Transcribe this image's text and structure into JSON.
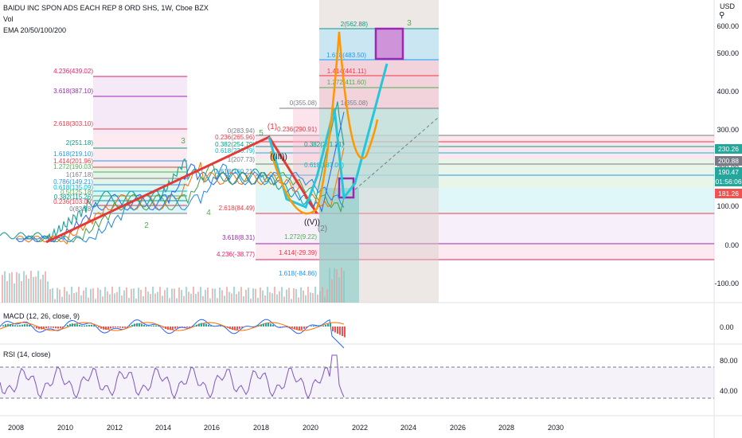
{
  "header": {
    "symbol": "BAIDU INC SPON ADS EACH REP 8 ORD SHS, 1W, Cboe BZX",
    "vol": "Vol",
    "ema": "EMA 20/50/100/200",
    "currency": "USD"
  },
  "main_axis": [
    "600.00",
    "500.00",
    "400.00",
    "300.00",
    "200.00",
    "100.00",
    "0.00",
    "-100.00"
  ],
  "price_badges": [
    {
      "text": "230.26",
      "color": "#26a69a"
    },
    {
      "text": "200.88",
      "color": "#787b86"
    },
    {
      "text": "190.47",
      "color": "#26a69a"
    },
    {
      "text": "01:56:06",
      "color": "#26a69a"
    },
    {
      "text": "181.26",
      "color": "#ef5350"
    }
  ],
  "x_axis": [
    "2008",
    "2010",
    "2012",
    "2014",
    "2016",
    "2018",
    "2020",
    "2022",
    "2024",
    "2026",
    "2028",
    "2030"
  ],
  "macd": {
    "label": "MACD (12, 26, close, 9)",
    "axis": [
      "0.00"
    ]
  },
  "rsi": {
    "label": "RSI (14, close)",
    "axis": [
      "80.00",
      "40.00"
    ]
  },
  "fib_left": [
    {
      "text": "4.236(439.02)",
      "color": "#e91e63"
    },
    {
      "text": "3.618(387.10)",
      "color": "#9c27b0"
    },
    {
      "text": "2.618(303.10)",
      "color": "#f23645"
    },
    {
      "text": "2(251.18)",
      "color": "#089981"
    },
    {
      "text": "1.618(219.10)",
      "color": "#2196f3"
    },
    {
      "text": "1.414(201.96)",
      "color": "#f23645"
    },
    {
      "text": "1.272(190.03)",
      "color": "#4caf50"
    },
    {
      "text": "1(167.18)",
      "color": "#787b86"
    },
    {
      "text": "0.786(149.21)",
      "color": "#2196f3"
    },
    {
      "text": "0.618(135.09)",
      "color": "#00bcd4"
    },
    {
      "text": "0.5(125.18)",
      "color": "#4caf50"
    },
    {
      "text": "0.382(115.26)",
      "color": "#089981"
    },
    {
      "text": "0.236(103.00)",
      "color": "#f23645"
    },
    {
      "text": "0(83.18)",
      "color": "#787b86"
    }
  ],
  "fib_mid": [
    {
      "text": "0(283.94)",
      "color": "#787b86"
    },
    {
      "text": "0.236(265.96)",
      "color": "#f23645"
    },
    {
      "text": "0.382(254.79)",
      "color": "#089981"
    },
    {
      "text": "0.618(236.79)",
      "color": "#00bcd4"
    },
    {
      "text": "1(207.73)",
      "color": "#787b86"
    },
    {
      "text": "1.618(160.21)",
      "color": "#2196f3"
    },
    {
      "text": "2.618(84.49)",
      "color": "#f23645"
    },
    {
      "text": "3.618(8.31)",
      "color": "#9c27b0"
    },
    {
      "text": "4.236(-38.77)",
      "color": "#e91e63"
    }
  ],
  "fib_right": [
    {
      "text": "2(562.88)",
      "color": "#089981"
    },
    {
      "text": "1.618(483.50)",
      "color": "#2196f3"
    },
    {
      "text": "1.414(441.11)",
      "color": "#f23645"
    },
    {
      "text": "1.272(411.60)",
      "color": "#4caf50"
    },
    {
      "text": "1(355.08)",
      "color": "#787b86"
    },
    {
      "text": "0(355.08)",
      "color": "#787b86"
    },
    {
      "text": "0.236(290.91)",
      "color": "#f23645"
    },
    {
      "text": "0.382(251.21)",
      "color": "#089981"
    },
    {
      "text": "0.618(187.05)",
      "color": "#00bcd4"
    },
    {
      "text": "1.272(9.22)",
      "color": "#4caf50"
    },
    {
      "text": "1.414(-29.39)",
      "color": "#f23645"
    },
    {
      "text": "1.618(-84.86)",
      "color": "#2196f3"
    }
  ],
  "waves": [
    {
      "text": "(1)",
      "color": "#f23645"
    },
    {
      "text": "5",
      "color": "#4caf50"
    },
    {
      "text": "3",
      "color": "#4caf50"
    },
    {
      "text": "4",
      "color": "#4caf50"
    },
    {
      "text": "2",
      "color": "#4caf50"
    },
    {
      "text": "(2)",
      "color": "#787b86"
    },
    {
      "text": "((V))",
      "color": "#131722"
    },
    {
      "text": "3",
      "color": "#4caf50"
    },
    {
      "text": "((III))",
      "color": "#131722"
    }
  ]
}
